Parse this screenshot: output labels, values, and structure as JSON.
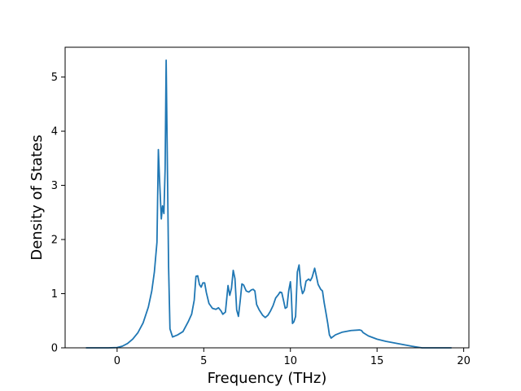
{
  "chart_data": {
    "type": "line",
    "title": "",
    "xlabel": "Frequency (THz)",
    "ylabel": "Density of States",
    "xlim": [
      -3.0,
      20.3
    ],
    "ylim": [
      0,
      5.55
    ],
    "xticks": [
      0,
      5,
      10,
      15,
      20
    ],
    "yticks": [
      0,
      1,
      2,
      3,
      4,
      5
    ],
    "grid": false,
    "legend": "none",
    "series": [
      {
        "name": "",
        "color": "#1f77b4",
        "points": [
          [
            -1.8,
            0
          ],
          [
            -0.5,
            0
          ],
          [
            0,
            0.005
          ],
          [
            0.3,
            0.03
          ],
          [
            0.6,
            0.08
          ],
          [
            0.9,
            0.16
          ],
          [
            1.2,
            0.28
          ],
          [
            1.5,
            0.46
          ],
          [
            1.8,
            0.75
          ],
          [
            2.0,
            1.05
          ],
          [
            2.15,
            1.4
          ],
          [
            2.3,
            1.95
          ],
          [
            2.38,
            3.66
          ],
          [
            2.45,
            3.1
          ],
          [
            2.55,
            2.38
          ],
          [
            2.62,
            2.62
          ],
          [
            2.7,
            2.48
          ],
          [
            2.77,
            3.3
          ],
          [
            2.83,
            5.31
          ],
          [
            2.9,
            3.4
          ],
          [
            2.97,
            1.5
          ],
          [
            3.05,
            0.35
          ],
          [
            3.2,
            0.2
          ],
          [
            3.5,
            0.24
          ],
          [
            3.8,
            0.3
          ],
          [
            4.1,
            0.48
          ],
          [
            4.3,
            0.62
          ],
          [
            4.45,
            0.88
          ],
          [
            4.55,
            1.32
          ],
          [
            4.65,
            1.33
          ],
          [
            4.75,
            1.17
          ],
          [
            4.85,
            1.12
          ],
          [
            4.95,
            1.2
          ],
          [
            5.05,
            1.2
          ],
          [
            5.15,
            1.02
          ],
          [
            5.3,
            0.82
          ],
          [
            5.5,
            0.73
          ],
          [
            5.7,
            0.71
          ],
          [
            5.85,
            0.74
          ],
          [
            6.0,
            0.68
          ],
          [
            6.1,
            0.62
          ],
          [
            6.25,
            0.66
          ],
          [
            6.4,
            1.15
          ],
          [
            6.5,
            0.97
          ],
          [
            6.6,
            1.1
          ],
          [
            6.7,
            1.43
          ],
          [
            6.8,
            1.28
          ],
          [
            6.9,
            0.7
          ],
          [
            7.0,
            0.58
          ],
          [
            7.1,
            0.86
          ],
          [
            7.2,
            1.18
          ],
          [
            7.3,
            1.16
          ],
          [
            7.45,
            1.05
          ],
          [
            7.6,
            1.03
          ],
          [
            7.75,
            1.07
          ],
          [
            7.85,
            1.08
          ],
          [
            7.95,
            1.05
          ],
          [
            8.05,
            0.8
          ],
          [
            8.2,
            0.7
          ],
          [
            8.4,
            0.6
          ],
          [
            8.55,
            0.56
          ],
          [
            8.7,
            0.6
          ],
          [
            8.85,
            0.68
          ],
          [
            9.0,
            0.78
          ],
          [
            9.15,
            0.92
          ],
          [
            9.3,
            0.98
          ],
          [
            9.4,
            1.03
          ],
          [
            9.5,
            1.02
          ],
          [
            9.6,
            0.88
          ],
          [
            9.7,
            0.73
          ],
          [
            9.8,
            0.75
          ],
          [
            9.9,
            1.05
          ],
          [
            10.0,
            1.22
          ],
          [
            10.05,
            1.0
          ],
          [
            10.12,
            0.45
          ],
          [
            10.2,
            0.48
          ],
          [
            10.3,
            0.58
          ],
          [
            10.4,
            1.4
          ],
          [
            10.5,
            1.53
          ],
          [
            10.6,
            1.15
          ],
          [
            10.7,
            1.0
          ],
          [
            10.8,
            1.06
          ],
          [
            10.9,
            1.23
          ],
          [
            11.05,
            1.27
          ],
          [
            11.15,
            1.24
          ],
          [
            11.25,
            1.3
          ],
          [
            11.4,
            1.47
          ],
          [
            11.5,
            1.32
          ],
          [
            11.6,
            1.17
          ],
          [
            11.75,
            1.08
          ],
          [
            11.85,
            1.05
          ],
          [
            11.95,
            0.83
          ],
          [
            12.05,
            0.65
          ],
          [
            12.15,
            0.46
          ],
          [
            12.25,
            0.24
          ],
          [
            12.35,
            0.18
          ],
          [
            12.6,
            0.24
          ],
          [
            13.0,
            0.29
          ],
          [
            13.5,
            0.32
          ],
          [
            14.0,
            0.33
          ],
          [
            14.1,
            0.32
          ],
          [
            14.2,
            0.28
          ],
          [
            14.5,
            0.22
          ],
          [
            15.0,
            0.16
          ],
          [
            15.5,
            0.12
          ],
          [
            16.0,
            0.09
          ],
          [
            16.5,
            0.06
          ],
          [
            17.0,
            0.03
          ],
          [
            17.4,
            0.01
          ],
          [
            17.6,
            0
          ],
          [
            19.3,
            0
          ]
        ]
      }
    ]
  }
}
